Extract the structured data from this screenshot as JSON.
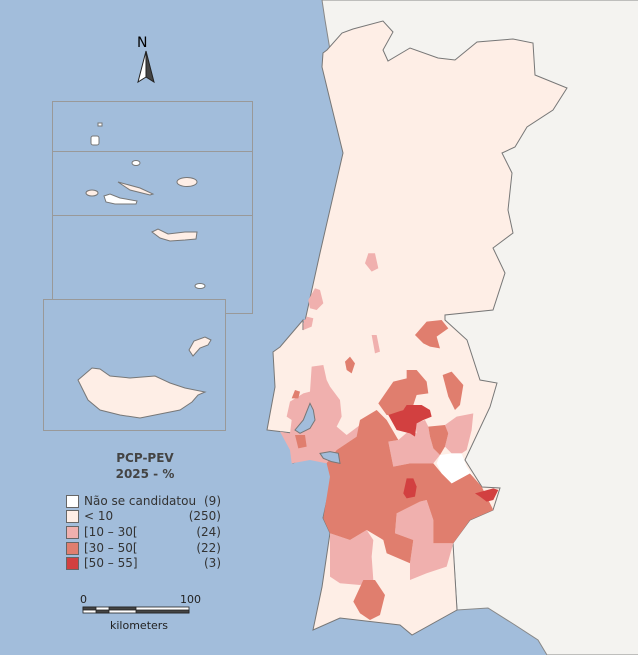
{
  "map": {
    "north_label": "N",
    "colors": {
      "sea": "#a2bddb",
      "spain": "#f4f3f0",
      "nao_se_candidatou": "#ffffff",
      "lt10": "#feeee6",
      "c10_30": "#f0b0ae",
      "c30_50": "#e07e6e",
      "c50_55": "#d24040"
    }
  },
  "legend": {
    "title_line1": "PCP-PEV",
    "title_line2": "2025 - %",
    "items": [
      {
        "label": "Não se candidatou",
        "count": "(9)",
        "color": "#ffffff"
      },
      {
        "label": "< 10",
        "count": "(250)",
        "color": "#feeee6"
      },
      {
        "label": "[10 – 30[",
        "count": "(24)",
        "color": "#f0b0ae"
      },
      {
        "label": "[30 – 50[",
        "count": "(22)",
        "color": "#e07e6e"
      },
      {
        "label": "[50 – 55]",
        "count": "(3)",
        "color": "#d24040"
      }
    ]
  },
  "scale_bar": {
    "min_label": "0",
    "max_label": "100",
    "unit": "kilometers"
  }
}
